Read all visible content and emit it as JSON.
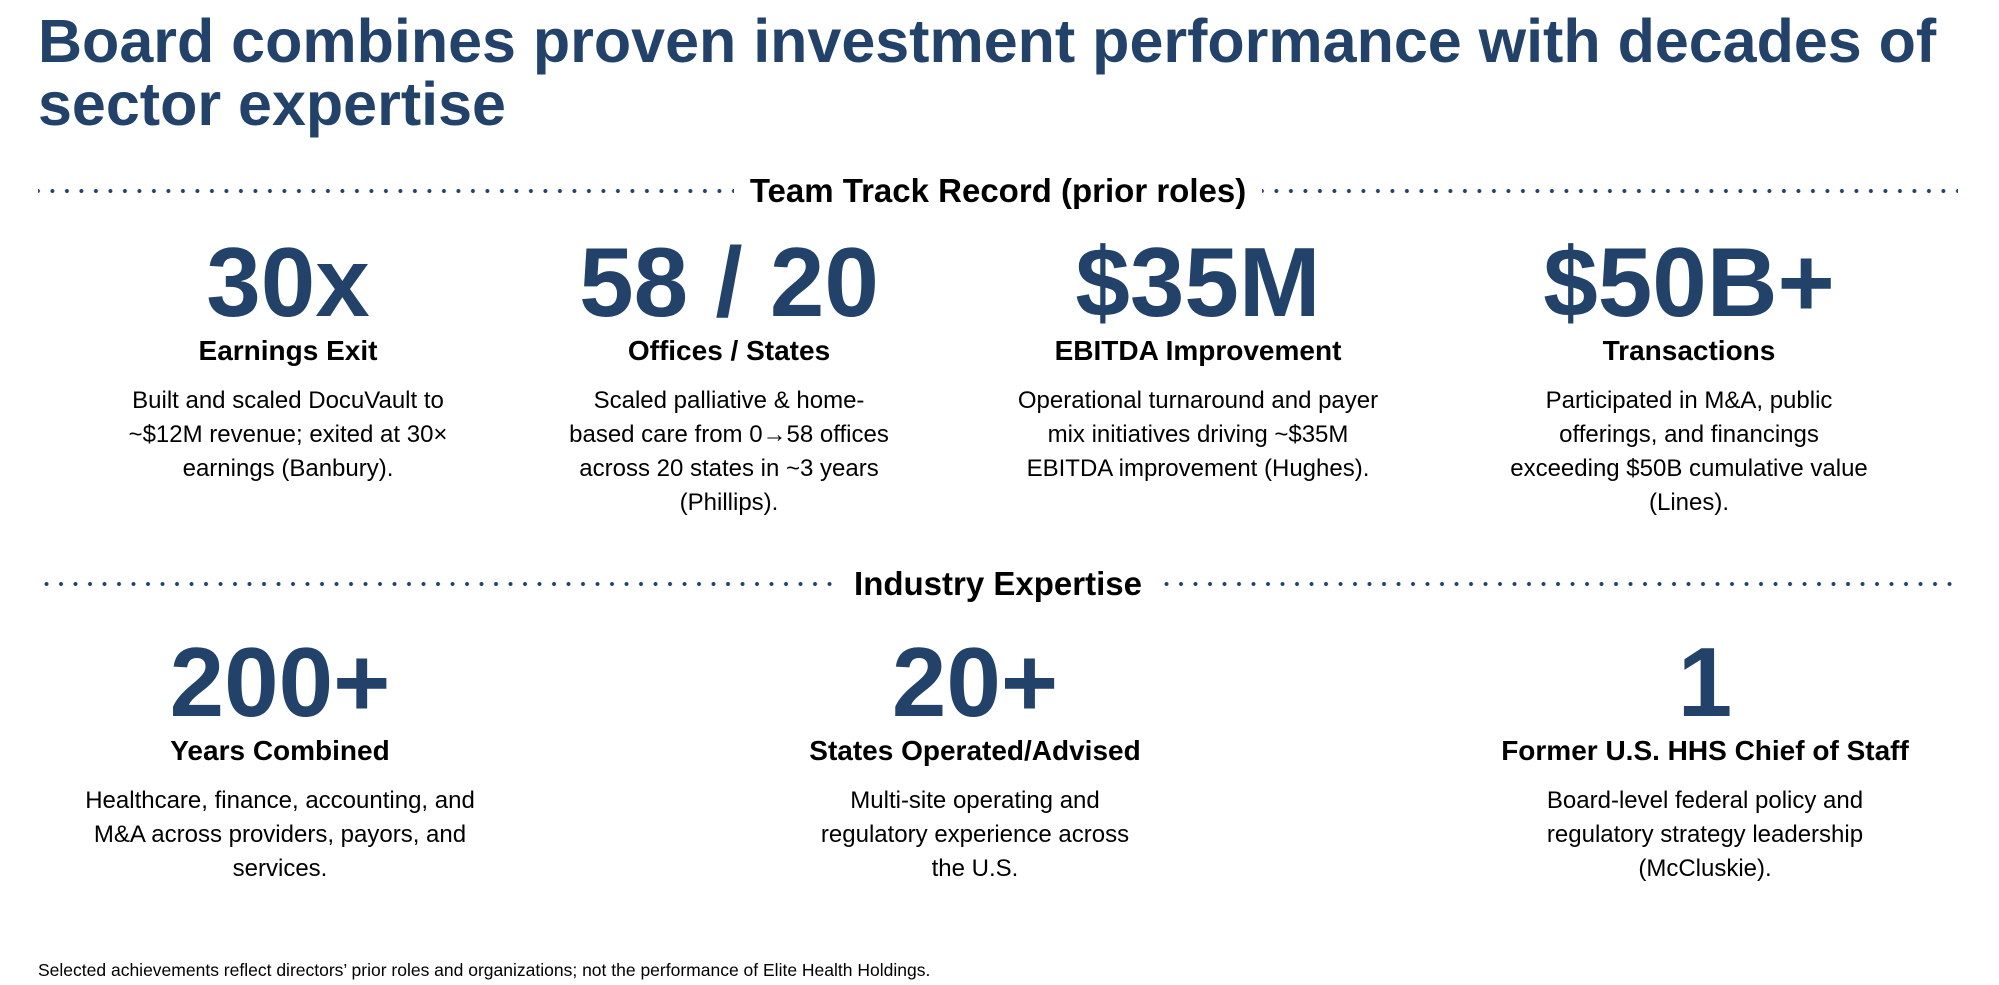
{
  "title": "Board combines proven investment performance with decades of sector expertise",
  "sections": {
    "track": "Team Track Record (prior roles)",
    "industry": "Industry Expertise"
  },
  "track": [
    {
      "value": "30x",
      "label": "Earnings Exit",
      "desc": "Built and scaled DocuVault to ~$12M revenue; exited at 30× earnings (Banbury)."
    },
    {
      "value": "58 / 20",
      "label": "Offices / States",
      "desc": "Scaled palliative & home-based care from 0→58 offices across 20 states in ~3 years (Phillips)."
    },
    {
      "value": "$35M",
      "label": "EBITDA Improvement",
      "desc": "Operational turnaround and payer mix initiatives driving ~$35M EBITDA improvement (Hughes)."
    },
    {
      "value": "$50B+",
      "label": "Transactions",
      "desc": "Participated in M&A, public offerings, and financings exceeding $50B cumulative value (Lines)."
    }
  ],
  "industry": [
    {
      "value": "200+",
      "label": "Years Combined",
      "desc": "Healthcare, finance, accounting, and M&A across providers, payors, and services."
    },
    {
      "value": "20+",
      "label": "States Operated/Advised",
      "desc": "Multi-site operating and regulatory experience across the U.S."
    },
    {
      "value": "1",
      "label": "Former U.S. HHS Chief of Staff",
      "desc": "Board-level federal policy and regulatory strategy leadership (McCluskie)."
    }
  ],
  "footnote": "Selected achievements reflect directors’ prior roles and organizations; not the performance of Elite Health Holdings.",
  "colors": {
    "accent": "#22426a"
  }
}
